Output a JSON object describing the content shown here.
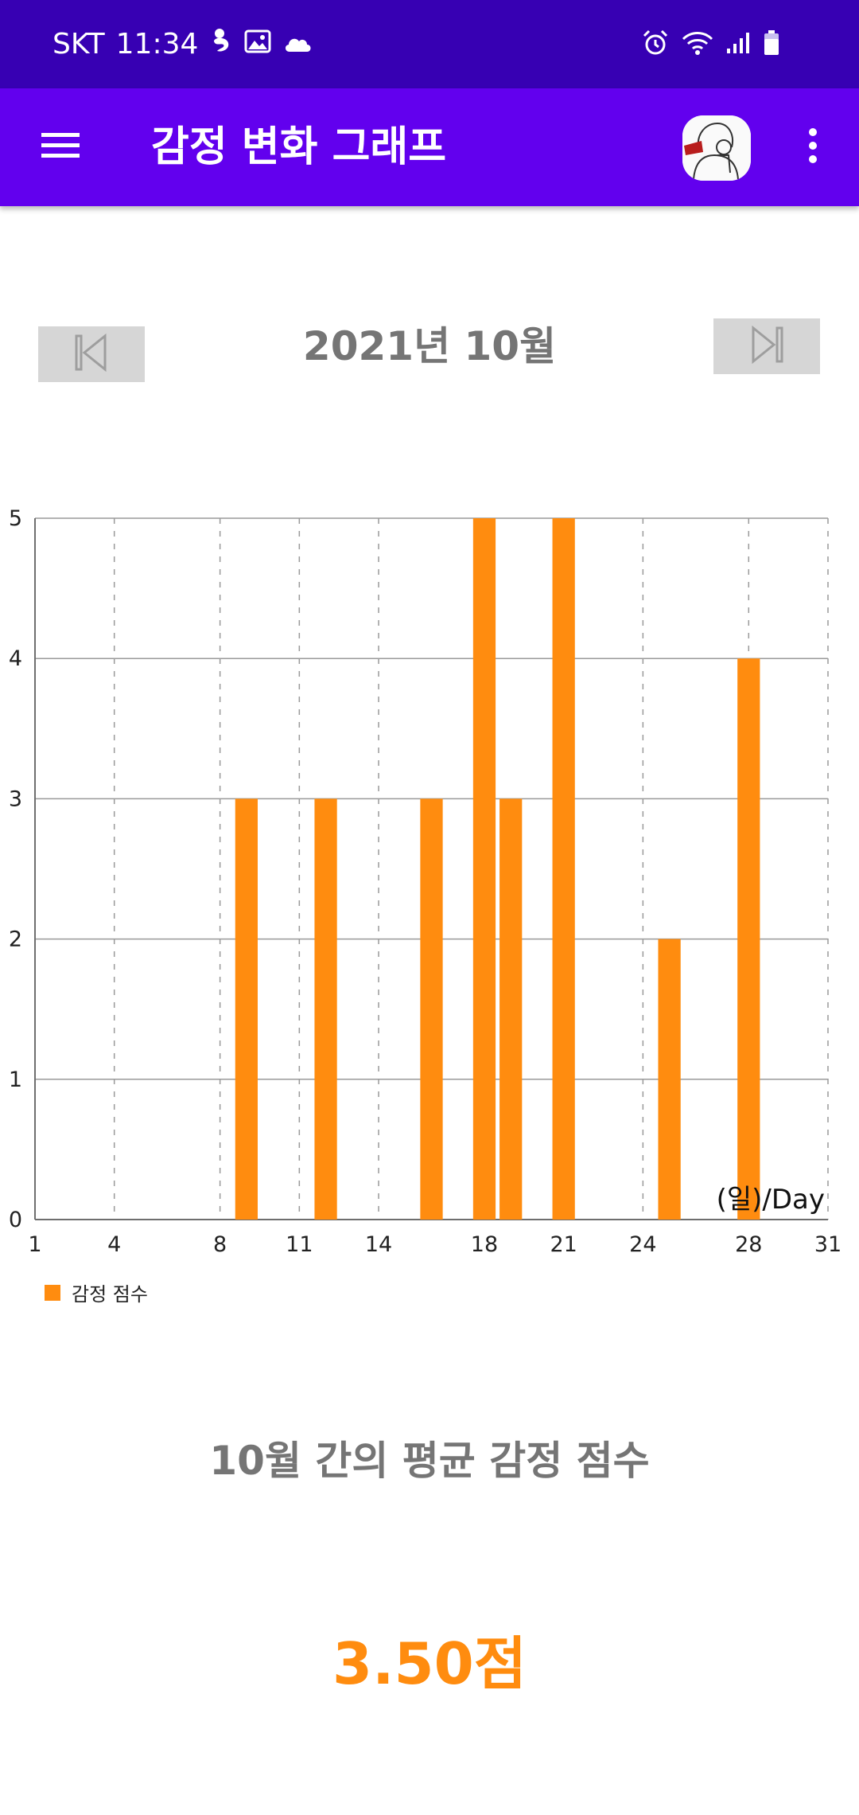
{
  "status_bar": {
    "carrier": "SKT",
    "time": "11:34",
    "left_icons": [
      "fetus-icon",
      "image-icon",
      "cloud-icon"
    ],
    "right_icons": [
      "alarm-icon",
      "wifi-icon",
      "signal-icon",
      "battery-icon"
    ]
  },
  "app_bar": {
    "title": "감정 변화 그래프",
    "menu_icon": "menu-icon",
    "more_icon": "more-vert-icon",
    "background": "#6200ee",
    "status_background": "#3700b3"
  },
  "month_nav": {
    "label": "2021년 10월",
    "prev_icon": "skip-previous-icon",
    "next_icon": "skip-next-icon"
  },
  "chart_data": {
    "type": "bar",
    "x": [
      9,
      12,
      16,
      18,
      19,
      21,
      25,
      28
    ],
    "series": [
      {
        "name": "감정 점수",
        "values": [
          3,
          3,
          3,
          5,
          3,
          5,
          2,
          4
        ],
        "color": "#ff8c0f"
      }
    ],
    "x_ticks": [
      1,
      4,
      8,
      11,
      14,
      18,
      21,
      24,
      28,
      31
    ],
    "y_ticks": [
      0,
      1,
      2,
      3,
      4,
      5
    ],
    "xlim": [
      1,
      31
    ],
    "ylim": [
      0,
      5
    ],
    "xlabel": "(일)/Day",
    "ylabel": "",
    "title": "",
    "grid": true,
    "legend": "bottom-left"
  },
  "summary": {
    "title": "10월 간의 평균 감정 점수",
    "value": "3.50점",
    "value_color": "#ff8c0f"
  }
}
